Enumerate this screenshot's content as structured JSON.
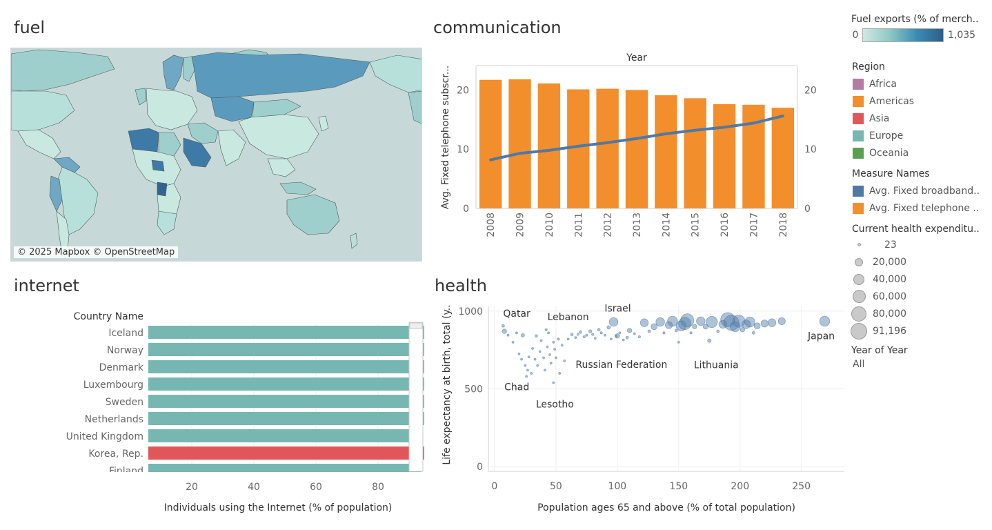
{
  "sheets": {
    "fuel": "fuel",
    "communication": "communication",
    "internet": "internet",
    "health": "health"
  },
  "map": {
    "attribution": "© 2025 Mapbox © OpenStreetMap"
  },
  "legend": {
    "fuel_title": "Fuel exports (% of merch..",
    "fuel_min": "0",
    "fuel_max": "1,035",
    "gradient_colors": [
      "#cfe9e2",
      "#8fc9c3",
      "#3b8db5",
      "#2c5f8a"
    ],
    "region_title": "Region",
    "regions": [
      {
        "label": "Africa",
        "color": "#b57aa6"
      },
      {
        "label": "Americas",
        "color": "#f28e2b"
      },
      {
        "label": "Asia",
        "color": "#e15759"
      },
      {
        "label": "Europe",
        "color": "#76b7b2"
      },
      {
        "label": "Oceania",
        "color": "#59a14f"
      }
    ],
    "measure_title": "Measure Names",
    "measures": [
      {
        "label": "Avg. Fixed broadband..",
        "color": "#4e79a7"
      },
      {
        "label": "Avg. Fixed telephone ..",
        "color": "#f28e2b"
      }
    ],
    "size_title": "Current health expenditu..",
    "sizes": [
      "23",
      "20,000",
      "40,000",
      "60,000",
      "80,000",
      "91,196"
    ],
    "year_title": "Year of Year",
    "year_value": "All"
  },
  "chart_data": [
    {
      "type": "bar",
      "name": "communication",
      "title": "Year",
      "categories": [
        "2008",
        "2009",
        "2010",
        "2011",
        "2012",
        "2013",
        "2014",
        "2015",
        "2016",
        "2017",
        "2018"
      ],
      "series": [
        {
          "name": "Avg. Fixed telephone subscr...",
          "values": [
            21.7,
            21.8,
            21.1,
            20.1,
            20.2,
            20.0,
            19.1,
            18.6,
            17.6,
            17.5,
            17.0
          ]
        },
        {
          "name": "Avg. Fixed broadband subsc...",
          "values": [
            8.2,
            9.3,
            9.8,
            10.5,
            11.1,
            11.8,
            12.6,
            13.2,
            13.7,
            14.4,
            15.6
          ]
        }
      ],
      "ylabel": "Avg. Fixed telephone subscr...",
      "y2label": "Avg. Fixed broadband subsc...",
      "yticks": [
        "0",
        "10",
        "20"
      ],
      "ylim": [
        0,
        24
      ]
    },
    {
      "type": "bar",
      "name": "internet",
      "ylabel": "Country Name",
      "xlabel": "Individuals using the Internet (% of population)",
      "categories": [
        "Iceland",
        "Norway",
        "Denmark",
        "Luxembourg",
        "Sweden",
        "Netherlands",
        "United Kingdom",
        "Korea, Rep.",
        "Finland"
      ],
      "values": [
        99,
        98,
        97,
        97,
        96,
        95,
        94,
        96,
        94
      ],
      "region": [
        "Europe",
        "Europe",
        "Europe",
        "Europe",
        "Europe",
        "Europe",
        "Europe",
        "Asia",
        "Europe"
      ],
      "xticks": [
        "20",
        "40",
        "60",
        "80"
      ],
      "xlim": [
        6,
        90
      ]
    },
    {
      "type": "scatter",
      "name": "health",
      "xlabel": "Population ages 65 and above (% of total population)",
      "ylabel": "Life expectancy at birth, total (y..",
      "xticks": [
        "0",
        "50",
        "100",
        "150",
        "200",
        "250"
      ],
      "yticks": [
        "0",
        "500",
        "1000"
      ],
      "xlim": [
        -5,
        285
      ],
      "ylim": [
        -30,
        1030
      ],
      "labeled_points": [
        {
          "label": "Qatar",
          "x": 7,
          "y": 905,
          "size": 3000
        },
        {
          "label": "Lebanon",
          "x": 42,
          "y": 880,
          "size": 2000
        },
        {
          "label": "Israel",
          "x": 97,
          "y": 930,
          "size": 30000
        },
        {
          "label": "Japan",
          "x": 269,
          "y": 935,
          "size": 40000
        },
        {
          "label": "Russian Federation",
          "x": 100,
          "y": 840,
          "size": 8000
        },
        {
          "label": "Lithuania",
          "x": 175,
          "y": 810,
          "size": 5000
        },
        {
          "label": "Chad",
          "x": 26,
          "y": 580,
          "size": 500
        },
        {
          "label": "Lesotho",
          "x": 48,
          "y": 540,
          "size": 500
        }
      ],
      "points": [
        {
          "x": 8,
          "y": 870,
          "size": 8000
        },
        {
          "x": 11,
          "y": 845,
          "size": 1500
        },
        {
          "x": 15,
          "y": 800,
          "size": 800
        },
        {
          "x": 18,
          "y": 860,
          "size": 1500
        },
        {
          "x": 20,
          "y": 725,
          "size": 500
        },
        {
          "x": 22,
          "y": 690,
          "size": 500
        },
        {
          "x": 23,
          "y": 845,
          "size": 5000
        },
        {
          "x": 25,
          "y": 650,
          "size": 500
        },
        {
          "x": 27,
          "y": 620,
          "size": 500
        },
        {
          "x": 28,
          "y": 705,
          "size": 800
        },
        {
          "x": 30,
          "y": 600,
          "size": 500
        },
        {
          "x": 31,
          "y": 760,
          "size": 800
        },
        {
          "x": 33,
          "y": 690,
          "size": 800
        },
        {
          "x": 34,
          "y": 840,
          "size": 3000
        },
        {
          "x": 35,
          "y": 650,
          "size": 500
        },
        {
          "x": 37,
          "y": 740,
          "size": 800
        },
        {
          "x": 38,
          "y": 810,
          "size": 2000
        },
        {
          "x": 40,
          "y": 700,
          "size": 800
        },
        {
          "x": 41,
          "y": 620,
          "size": 500
        },
        {
          "x": 43,
          "y": 770,
          "size": 1000
        },
        {
          "x": 44,
          "y": 860,
          "size": 1500
        },
        {
          "x": 45,
          "y": 720,
          "size": 800
        },
        {
          "x": 46,
          "y": 665,
          "size": 500
        },
        {
          "x": 48,
          "y": 800,
          "size": 1500
        },
        {
          "x": 49,
          "y": 755,
          "size": 800
        },
        {
          "x": 50,
          "y": 700,
          "size": 800
        },
        {
          "x": 52,
          "y": 820,
          "size": 2000
        },
        {
          "x": 53,
          "y": 600,
          "size": 500
        },
        {
          "x": 55,
          "y": 780,
          "size": 1000
        },
        {
          "x": 57,
          "y": 680,
          "size": 800
        },
        {
          "x": 60,
          "y": 820,
          "size": 1500
        },
        {
          "x": 63,
          "y": 850,
          "size": 3000
        },
        {
          "x": 66,
          "y": 830,
          "size": 1500
        },
        {
          "x": 68,
          "y": 850,
          "size": 1500
        },
        {
          "x": 70,
          "y": 865,
          "size": 3000
        },
        {
          "x": 73,
          "y": 835,
          "size": 2000
        },
        {
          "x": 75,
          "y": 845,
          "size": 1500
        },
        {
          "x": 78,
          "y": 870,
          "size": 4000
        },
        {
          "x": 80,
          "y": 850,
          "size": 2000
        },
        {
          "x": 82,
          "y": 825,
          "size": 1500
        },
        {
          "x": 85,
          "y": 880,
          "size": 3000
        },
        {
          "x": 87,
          "y": 860,
          "size": 2000
        },
        {
          "x": 90,
          "y": 845,
          "size": 1500
        },
        {
          "x": 93,
          "y": 895,
          "size": 5000
        },
        {
          "x": 95,
          "y": 820,
          "size": 1500
        },
        {
          "x": 99,
          "y": 840,
          "size": 1000
        },
        {
          "x": 102,
          "y": 860,
          "size": 1500
        },
        {
          "x": 105,
          "y": 815,
          "size": 800
        },
        {
          "x": 108,
          "y": 830,
          "size": 3000
        },
        {
          "x": 110,
          "y": 875,
          "size": 8000
        },
        {
          "x": 114,
          "y": 855,
          "size": 1500
        },
        {
          "x": 118,
          "y": 835,
          "size": 2000
        },
        {
          "x": 122,
          "y": 925,
          "size": 25000
        },
        {
          "x": 126,
          "y": 870,
          "size": 3000
        },
        {
          "x": 130,
          "y": 900,
          "size": 15000
        },
        {
          "x": 135,
          "y": 930,
          "size": 30000
        },
        {
          "x": 138,
          "y": 860,
          "size": 2000
        },
        {
          "x": 142,
          "y": 910,
          "size": 20000
        },
        {
          "x": 145,
          "y": 935,
          "size": 40000
        },
        {
          "x": 148,
          "y": 875,
          "size": 3000
        },
        {
          "x": 150,
          "y": 800,
          "size": 1500
        },
        {
          "x": 152,
          "y": 905,
          "size": 40000
        },
        {
          "x": 155,
          "y": 920,
          "size": 60000
        },
        {
          "x": 157,
          "y": 940,
          "size": 70000
        },
        {
          "x": 160,
          "y": 860,
          "size": 2000
        },
        {
          "x": 163,
          "y": 900,
          "size": 8000
        },
        {
          "x": 168,
          "y": 935,
          "size": 30000
        },
        {
          "x": 172,
          "y": 900,
          "size": 10000
        },
        {
          "x": 177,
          "y": 930,
          "size": 50000
        },
        {
          "x": 182,
          "y": 870,
          "size": 3000
        },
        {
          "x": 186,
          "y": 915,
          "size": 25000
        },
        {
          "x": 190,
          "y": 945,
          "size": 80000
        },
        {
          "x": 193,
          "y": 925,
          "size": 91196
        },
        {
          "x": 196,
          "y": 900,
          "size": 40000
        },
        {
          "x": 199,
          "y": 935,
          "size": 60000
        },
        {
          "x": 202,
          "y": 880,
          "size": 8000
        },
        {
          "x": 205,
          "y": 915,
          "size": 30000
        },
        {
          "x": 208,
          "y": 930,
          "size": 40000
        },
        {
          "x": 211,
          "y": 860,
          "size": 3000
        },
        {
          "x": 214,
          "y": 905,
          "size": 15000
        },
        {
          "x": 220,
          "y": 920,
          "size": 20000
        },
        {
          "x": 226,
          "y": 925,
          "size": 25000
        },
        {
          "x": 234,
          "y": 935,
          "size": 20000
        }
      ]
    }
  ]
}
